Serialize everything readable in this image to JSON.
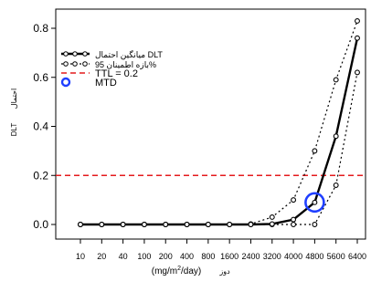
{
  "chart_data": {
    "type": "line",
    "title": "",
    "categories": [
      "10",
      "20",
      "40",
      "100",
      "200",
      "400",
      "800",
      "1600",
      "2400",
      "3200",
      "4000",
      "4800",
      "5600",
      "6400"
    ],
    "x": [
      10,
      20,
      40,
      100,
      200,
      400,
      800,
      1600,
      2400,
      3200,
      4000,
      4800,
      5600,
      6400
    ],
    "ylim": [
      -0.02,
      0.88
    ],
    "yticks": [
      0.0,
      0.2,
      0.4,
      0.6,
      0.8
    ],
    "ytick_labels": [
      "0.0",
      "0.2",
      "0.4",
      "0.6",
      "0.8"
    ],
    "ylabel_parts": [
      "DLT",
      "احتمال"
    ],
    "xlabel_parts": [
      "(mg/m",
      "2",
      "/day)",
      "دوز"
    ],
    "grid": false,
    "legend_position": "top-left",
    "series": [
      {
        "name": "میانگین احتمال DLT",
        "style": "solid-thick-circles",
        "color": "#000000",
        "values": [
          0.0,
          0.0,
          0.0,
          0.0,
          0.0,
          0.0,
          0.0,
          0.0,
          0.0,
          0.002,
          0.02,
          0.09,
          0.36,
          0.76
        ]
      },
      {
        "name": "بازه اطمینان 95%",
        "style": "dotted-circles",
        "color": "#000000",
        "lower": [
          0.0,
          0.0,
          0.0,
          0.0,
          0.0,
          0.0,
          0.0,
          0.0,
          0.0,
          0.0,
          0.0,
          0.0,
          0.16,
          0.62
        ],
        "upper": [
          0.0,
          0.0,
          0.0,
          0.0,
          0.0,
          0.0,
          0.0,
          0.0,
          0.002,
          0.03,
          0.1,
          0.3,
          0.59,
          0.83
        ]
      },
      {
        "name": "TTL = 0.2",
        "style": "dashed",
        "color": "#e41a1c",
        "value": 0.2
      },
      {
        "name": "MTD",
        "style": "ring",
        "color": "#1f3fff",
        "x": "4800",
        "y": 0.09
      }
    ],
    "legend": [
      {
        "label": "میانگین احتمال DLT",
        "style": "solid-circles"
      },
      {
        "label": "بازه اطمینان 95%",
        "style": "dotted-circles"
      },
      {
        "label": "TTL = 0.2",
        "style": "dashed-red"
      },
      {
        "label": "MTD",
        "style": "blue-ring"
      }
    ]
  }
}
